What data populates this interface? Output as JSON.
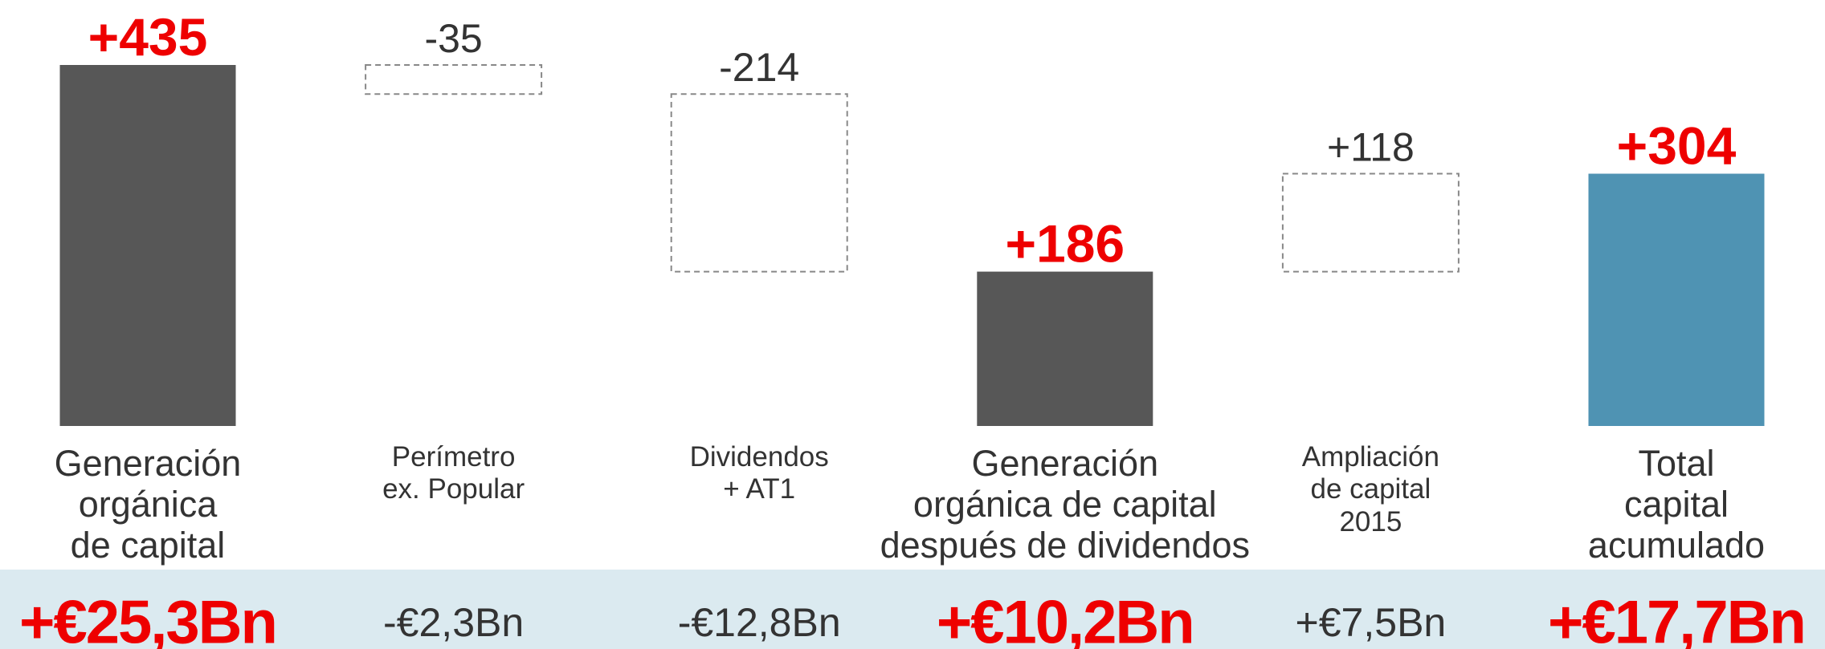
{
  "chart_data": {
    "type": "waterfall",
    "categories": [
      "Generación\norgánica\nde capital",
      "Perímetro\nex. Popular",
      "Dividendos\n+ AT1",
      "Generación\norgánica de capital\ndespués de dividendos",
      "Ampliación\nde capital\n2015",
      "Total\ncapital\nacumulado"
    ],
    "values": [
      435,
      -35,
      -214,
      186,
      118,
      304
    ],
    "value_labels": [
      "+435",
      "-35",
      "-214",
      "+186",
      "+118",
      "+304"
    ],
    "is_total": [
      true,
      false,
      false,
      true,
      false,
      true
    ],
    "colors": [
      "#575757",
      "#ffffff",
      "#ffffff",
      "#575757",
      "#ffffff",
      "#4f93b3"
    ],
    "amount_labels": [
      "+€25,3Bn",
      "-€2,3Bn",
      "-€12,8Bn",
      "+€10,2Bn",
      "+€7,5Bn",
      "+€17,7Bn"
    ]
  }
}
